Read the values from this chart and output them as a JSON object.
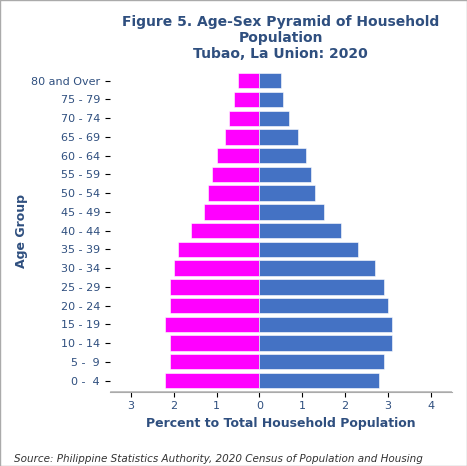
{
  "age_groups": [
    "0 -  4",
    "5 -  9",
    "10 - 14",
    "15 - 19",
    "20 - 24",
    "25 - 29",
    "30 - 34",
    "35 - 39",
    "40 - 44",
    "45 - 49",
    "50 - 54",
    "55 - 59",
    "60 - 64",
    "65 - 69",
    "70 - 74",
    "75 - 79",
    "80 and Over"
  ],
  "female": [
    2.2,
    2.1,
    2.1,
    2.2,
    2.1,
    2.1,
    2.0,
    1.9,
    1.6,
    1.3,
    1.2,
    1.1,
    1.0,
    0.8,
    0.7,
    0.6,
    0.5
  ],
  "male": [
    2.8,
    2.9,
    3.1,
    3.1,
    3.0,
    2.9,
    2.7,
    2.3,
    1.9,
    1.5,
    1.3,
    1.2,
    1.1,
    0.9,
    0.7,
    0.55,
    0.5
  ],
  "female_color": "#FF00FF",
  "male_color": "#4472C4",
  "title_line1": "Figure 5. Age-Sex Pyramid of Household",
  "title_line2": "Population",
  "title_line3": "Tubao, La Union: 2020",
  "xlabel": "Percent to Total Household Population",
  "ylabel": "Age Group",
  "xlim": [
    -3.5,
    4.5
  ],
  "xticks": [
    -3,
    -2,
    -1,
    0,
    1,
    2,
    3,
    4
  ],
  "xticklabels": [
    "3",
    "2",
    "1",
    "0",
    "1",
    "2",
    "3",
    "4"
  ],
  "source_text": "Source: Philippine Statistics Authority, 2020 Census of Population and Housing",
  "title_fontsize": 10,
  "axis_label_fontsize": 9,
  "tick_fontsize": 8,
  "source_fontsize": 7.5,
  "bar_height": 0.82,
  "background_color": "#FFFFFF",
  "title_color": "#2F4F7F",
  "axis_label_color": "#2F4F7F",
  "tick_color": "#2F4F7F"
}
